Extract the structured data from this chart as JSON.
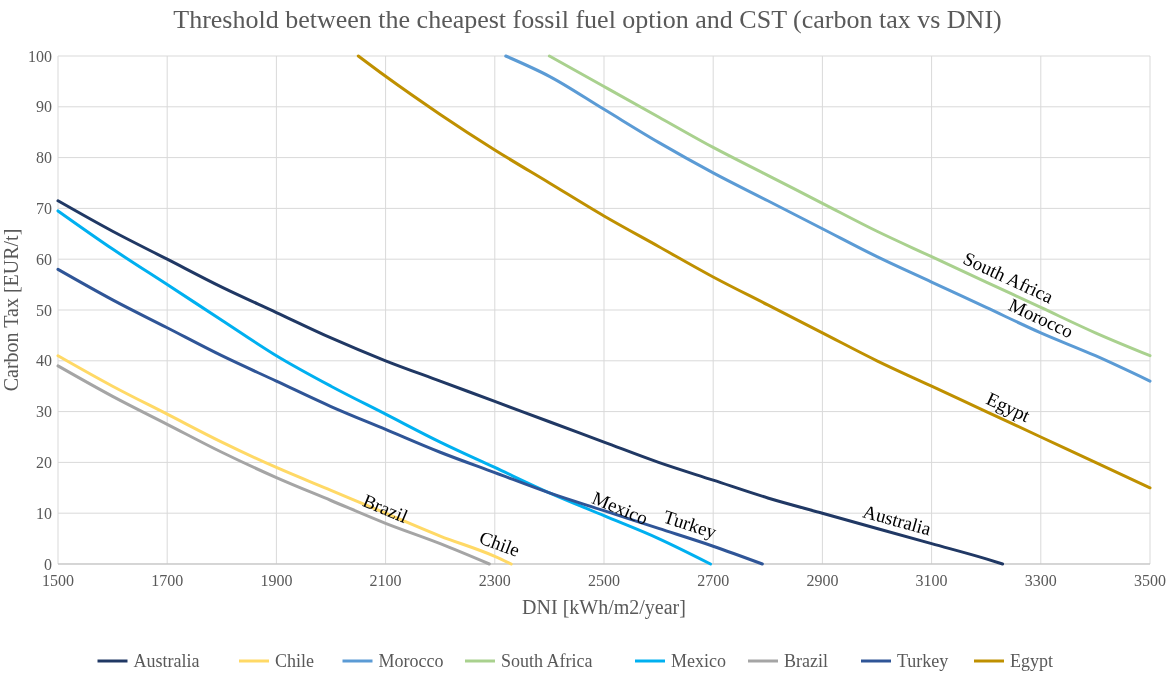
{
  "chart_data": {
    "type": "line",
    "title": "Threshold between the cheapest fossil fuel option and CST (carbon tax vs DNI)",
    "xlabel": "DNI [kWh/m2/year]",
    "ylabel": "Carbon Tax [EUR/t]",
    "xlim": [
      1500,
      3500
    ],
    "xticks": [
      1500,
      1700,
      1900,
      2100,
      2300,
      2500,
      2700,
      2900,
      3100,
      3300,
      3500
    ],
    "ylim": [
      0,
      100
    ],
    "yticks": [
      0,
      10,
      20,
      30,
      40,
      50,
      60,
      70,
      80,
      90,
      100
    ],
    "grid": true,
    "legend": "bottom",
    "marker": "none",
    "line_style": "solid",
    "series": [
      {
        "name": "Australia",
        "color": "#203864",
        "x": [
          1500,
          1600,
          1700,
          1800,
          1900,
          2000,
          2100,
          2200,
          2300,
          2400,
          2500,
          2600,
          2700,
          2800,
          2900,
          3000,
          3100,
          3200,
          3230
        ],
        "values": [
          71.5,
          65.5,
          60,
          54.5,
          49.5,
          44.5,
          40,
          36,
          32,
          28,
          24,
          20,
          16.5,
          13,
          10,
          7,
          4,
          1,
          0
        ]
      },
      {
        "name": "Chile",
        "color": "#ffd966",
        "x": [
          1500,
          1600,
          1700,
          1800,
          1900,
          2000,
          2100,
          2200,
          2300,
          2330
        ],
        "values": [
          41,
          35,
          29.5,
          24,
          19,
          14.5,
          10,
          5.5,
          1.5,
          0
        ]
      },
      {
        "name": "Morocco",
        "color": "#5b9bd5",
        "x": [
          2320,
          2400,
          2500,
          2600,
          2700,
          2800,
          2900,
          3000,
          3100,
          3200,
          3300,
          3400,
          3500
        ],
        "values": [
          100,
          96,
          89.5,
          83,
          77,
          71.5,
          66,
          60.5,
          55.5,
          50.5,
          45.5,
          41,
          36
        ]
      },
      {
        "name": "South Africa",
        "color": "#a9d18e",
        "x": [
          2400,
          2500,
          2600,
          2700,
          2800,
          2900,
          3000,
          3100,
          3200,
          3300,
          3400,
          3500
        ],
        "values": [
          100,
          94,
          88,
          82,
          76.5,
          71,
          65.5,
          60.5,
          55.5,
          50.5,
          45.5,
          41
        ]
      },
      {
        "name": "Mexico",
        "color": "#00b0f0",
        "x": [
          1500,
          1600,
          1700,
          1800,
          1900,
          2000,
          2100,
          2200,
          2300,
          2400,
          2500,
          2600,
          2695
        ],
        "values": [
          69.5,
          62,
          55,
          48,
          41,
          35,
          29.5,
          24,
          19,
          14,
          9.5,
          5,
          0
        ]
      },
      {
        "name": "Brazil",
        "color": "#a5a5a5",
        "x": [
          1500,
          1600,
          1700,
          1800,
          1900,
          2000,
          2100,
          2200,
          2290
        ],
        "values": [
          39,
          33,
          27.5,
          22,
          17,
          12.5,
          8,
          4,
          0
        ]
      },
      {
        "name": "Turkey",
        "color": "#2f5597",
        "x": [
          1500,
          1600,
          1700,
          1800,
          1900,
          2000,
          2100,
          2200,
          2300,
          2400,
          2500,
          2600,
          2700,
          2790
        ],
        "values": [
          58,
          52,
          46.5,
          41,
          36,
          31,
          26.5,
          22,
          18,
          14,
          10.5,
          7,
          3.5,
          0
        ]
      },
      {
        "name": "Egypt",
        "color": "#bf9000",
        "x": [
          2050,
          2100,
          2200,
          2300,
          2400,
          2500,
          2600,
          2700,
          2800,
          2900,
          3000,
          3100,
          3200,
          3300,
          3400,
          3500
        ],
        "values": [
          100,
          96,
          88.5,
          81.5,
          75,
          68.5,
          62.5,
          56.5,
          51,
          45.5,
          40,
          35,
          30,
          25,
          20,
          15
        ]
      }
    ],
    "annotations": [
      {
        "text": "South Africa",
        "x": 3230,
        "y": 54
      },
      {
        "text": "Morocco",
        "x": 3290,
        "y": 46
      },
      {
        "text": "Egypt",
        "x": 3230,
        "y": 28.5
      },
      {
        "text": "Australia",
        "x": 3030,
        "y": 6.1
      },
      {
        "text": "Turkey",
        "x": 2650,
        "y": 5.3
      },
      {
        "text": "Mexico",
        "x": 2520,
        "y": 8.6
      },
      {
        "text": "Chile",
        "x": 2300,
        "y": 1.5
      },
      {
        "text": "Brazil",
        "x": 2090,
        "y": 8.5
      }
    ]
  }
}
